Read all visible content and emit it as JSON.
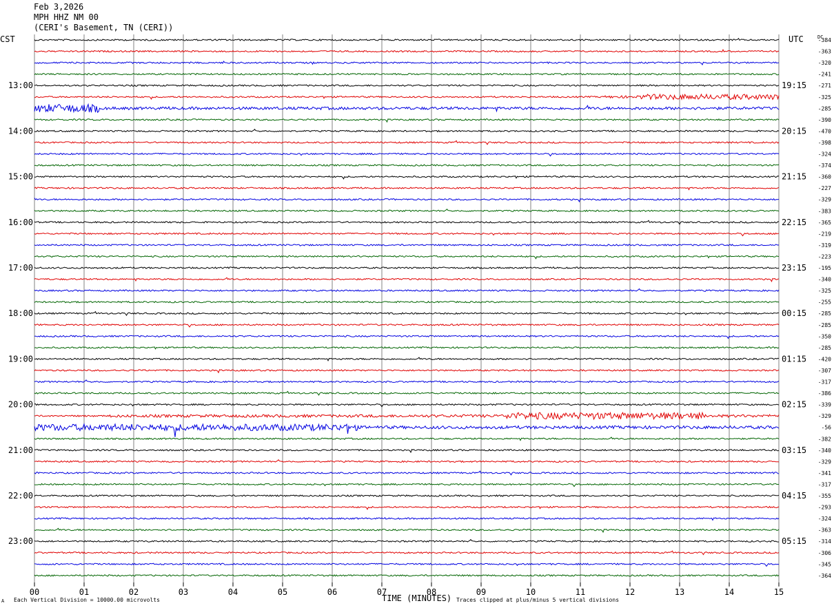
{
  "header": {
    "date": "Feb 3,2026",
    "station": "MPH HHZ NM 00",
    "location": "(CERI's Basement, TN (CERI))"
  },
  "left_tz": "CST",
  "right_tz": "UTC",
  "dc_label": "DC",
  "footer": {
    "scale_note": "Each Vertical Division = 10000.00 microvolts",
    "clip_note": "Traces clipped at plus/minus 5 vertical divisions",
    "corner_mark": "A"
  },
  "colors": {
    "trace_cycle": [
      "#000000",
      "#e00000",
      "#0000e0",
      "#006400"
    ],
    "grid": "#808080"
  },
  "chart_data": {
    "type": "line",
    "xlabel": "TIME (MINUTES)",
    "x_ticks": [
      "00",
      "01",
      "02",
      "03",
      "04",
      "05",
      "06",
      "07",
      "08",
      "09",
      "10",
      "11",
      "12",
      "13",
      "14",
      "15"
    ],
    "xlim": [
      0,
      15
    ],
    "rows_per_hour": 4,
    "left_hour_labels": [
      "13:00",
      "14:00",
      "15:00",
      "16:00",
      "17:00",
      "18:00",
      "19:00",
      "20:00",
      "21:00",
      "22:00",
      "23:00"
    ],
    "right_hour_labels": [
      "19:15",
      "20:15",
      "21:15",
      "22:15",
      "23:15",
      "00:15",
      "01:15",
      "02:15",
      "03:15",
      "04:15",
      "05:15"
    ],
    "dc_offsets": [
      -384,
      -363,
      -320,
      -241,
      -271,
      -325,
      -285,
      -390,
      -470,
      -398,
      -324,
      -374,
      -360,
      -227,
      -329,
      -383,
      -365,
      -219,
      -319,
      -223,
      -195,
      -340,
      -325,
      -255,
      -285,
      -285,
      -350,
      -285,
      -420,
      -307,
      -317,
      -386,
      -339,
      -329,
      -56,
      -382,
      -340,
      -329,
      -341,
      -317,
      -355,
      -293,
      -324,
      -363,
      -314,
      -306,
      -345,
      -364
    ],
    "row_activity": [
      {
        "row": 6,
        "from": 0,
        "to": 15,
        "amp": 0.9,
        "burst": [
          0,
          1.3,
          3.0
        ]
      },
      {
        "row": 5,
        "from": 11.5,
        "to": 15,
        "amp": 0.8,
        "burst": [
          12.2,
          15,
          2.2
        ]
      },
      {
        "row": 33,
        "from": 1.5,
        "to": 15,
        "amp": 0.9,
        "burst": [
          9.5,
          13.5,
          2.5
        ]
      },
      {
        "row": 34,
        "from": 0,
        "to": 15,
        "amp": 1.0,
        "burst": [
          0,
          6.5,
          2.2
        ]
      }
    ]
  }
}
